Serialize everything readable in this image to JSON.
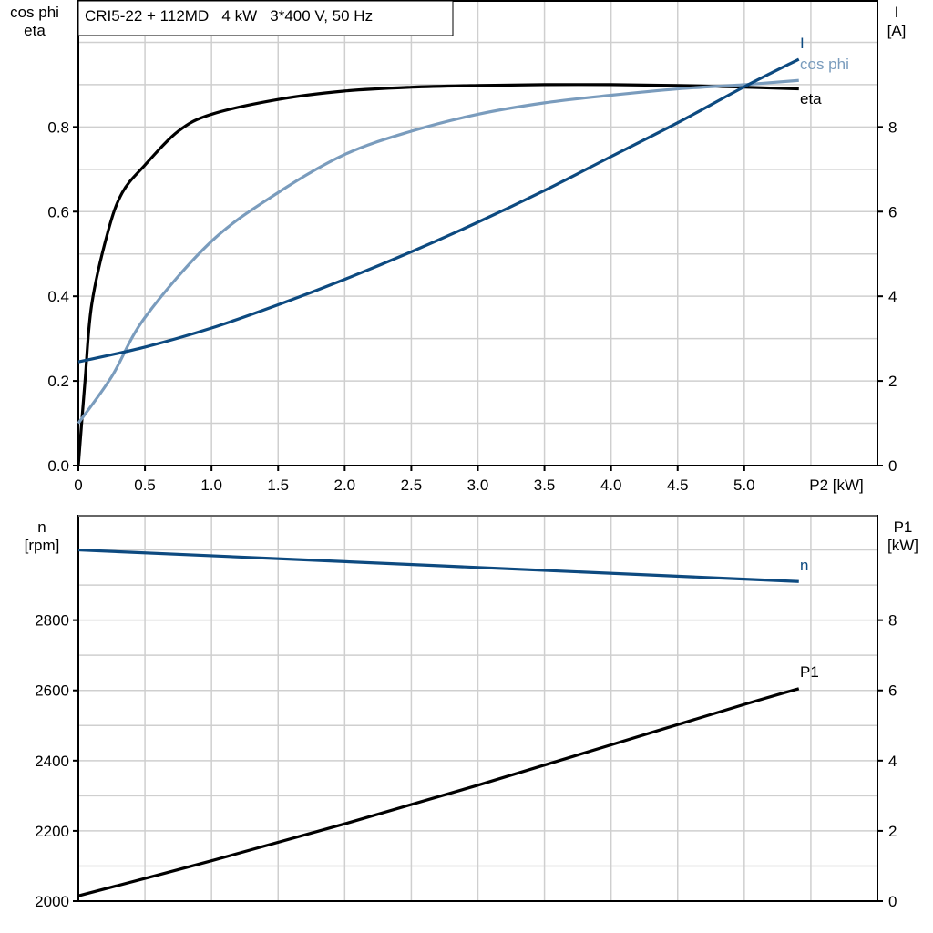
{
  "chart_data": [
    {
      "type": "line",
      "title": "CRI5-22 + 112MD   4 kW   3*400 V, 50 Hz",
      "xlabel": "P2 [kW]",
      "ylabel": "cos phi\neta",
      "y2label": "I\n[A]",
      "xlim": [
        0,
        6
      ],
      "ylim": [
        0,
        1.1
      ],
      "y2lim": [
        0,
        11
      ],
      "xticks": [
        "0",
        "0.5",
        "1.0",
        "1.5",
        "2.0",
        "2.5",
        "3.0",
        "3.5",
        "4.0",
        "4.5",
        "5.0"
      ],
      "yticks": [
        "0.0",
        "0.2",
        "0.4",
        "0.6",
        "0.8"
      ],
      "y2ticks": [
        "0",
        "2",
        "4",
        "6",
        "8"
      ],
      "grid": true,
      "series": [
        {
          "name": "eta",
          "axis": "left",
          "color": "#000000",
          "x": [
            0,
            0.05,
            0.1,
            0.22,
            0.33,
            0.5,
            0.75,
            1.0,
            1.5,
            2.0,
            2.5,
            3.0,
            3.5,
            4.0,
            4.5,
            5.0,
            5.41
          ],
          "y": [
            0,
            0.2,
            0.38,
            0.55,
            0.645,
            0.71,
            0.79,
            0.83,
            0.865,
            0.885,
            0.894,
            0.898,
            0.9,
            0.9,
            0.898,
            0.894,
            0.89
          ]
        },
        {
          "name": "cos phi",
          "axis": "left",
          "color": "#7a9cbd",
          "x": [
            0,
            0.25,
            0.5,
            1.0,
            1.5,
            2.0,
            2.5,
            3.0,
            3.5,
            4.0,
            4.5,
            5.0,
            5.41
          ],
          "y": [
            0.1,
            0.21,
            0.35,
            0.53,
            0.645,
            0.735,
            0.79,
            0.83,
            0.857,
            0.875,
            0.89,
            0.9,
            0.91
          ]
        },
        {
          "name": "I",
          "axis": "right",
          "color": "#0d4a80",
          "x": [
            0,
            0.5,
            1.0,
            1.5,
            2.0,
            2.5,
            3.0,
            3.5,
            4.0,
            4.5,
            5.0,
            5.41
          ],
          "y": [
            2.45,
            2.8,
            3.25,
            3.8,
            4.4,
            5.05,
            5.75,
            6.5,
            7.3,
            8.1,
            8.95,
            9.6
          ]
        }
      ]
    },
    {
      "type": "line",
      "xlim": [
        0,
        6
      ],
      "ylabel": "n\n[rpm]",
      "y2label": "P1\n[kW]",
      "ylim": [
        2000,
        3100
      ],
      "y2lim": [
        0,
        11
      ],
      "yticks": [
        "2000",
        "2200",
        "2400",
        "2600",
        "2800"
      ],
      "y2ticks": [
        "0",
        "2",
        "4",
        "6",
        "8"
      ],
      "grid": true,
      "series": [
        {
          "name": "n",
          "axis": "left",
          "color": "#0d4a80",
          "x": [
            0,
            5.41
          ],
          "y": [
            3000,
            2910
          ]
        },
        {
          "name": "P1",
          "axis": "right",
          "color": "#000000",
          "x": [
            0,
            1.0,
            2.0,
            3.0,
            4.0,
            5.0,
            5.41
          ],
          "y": [
            0.15,
            1.15,
            2.2,
            3.3,
            4.45,
            5.6,
            6.05
          ]
        }
      ]
    }
  ]
}
